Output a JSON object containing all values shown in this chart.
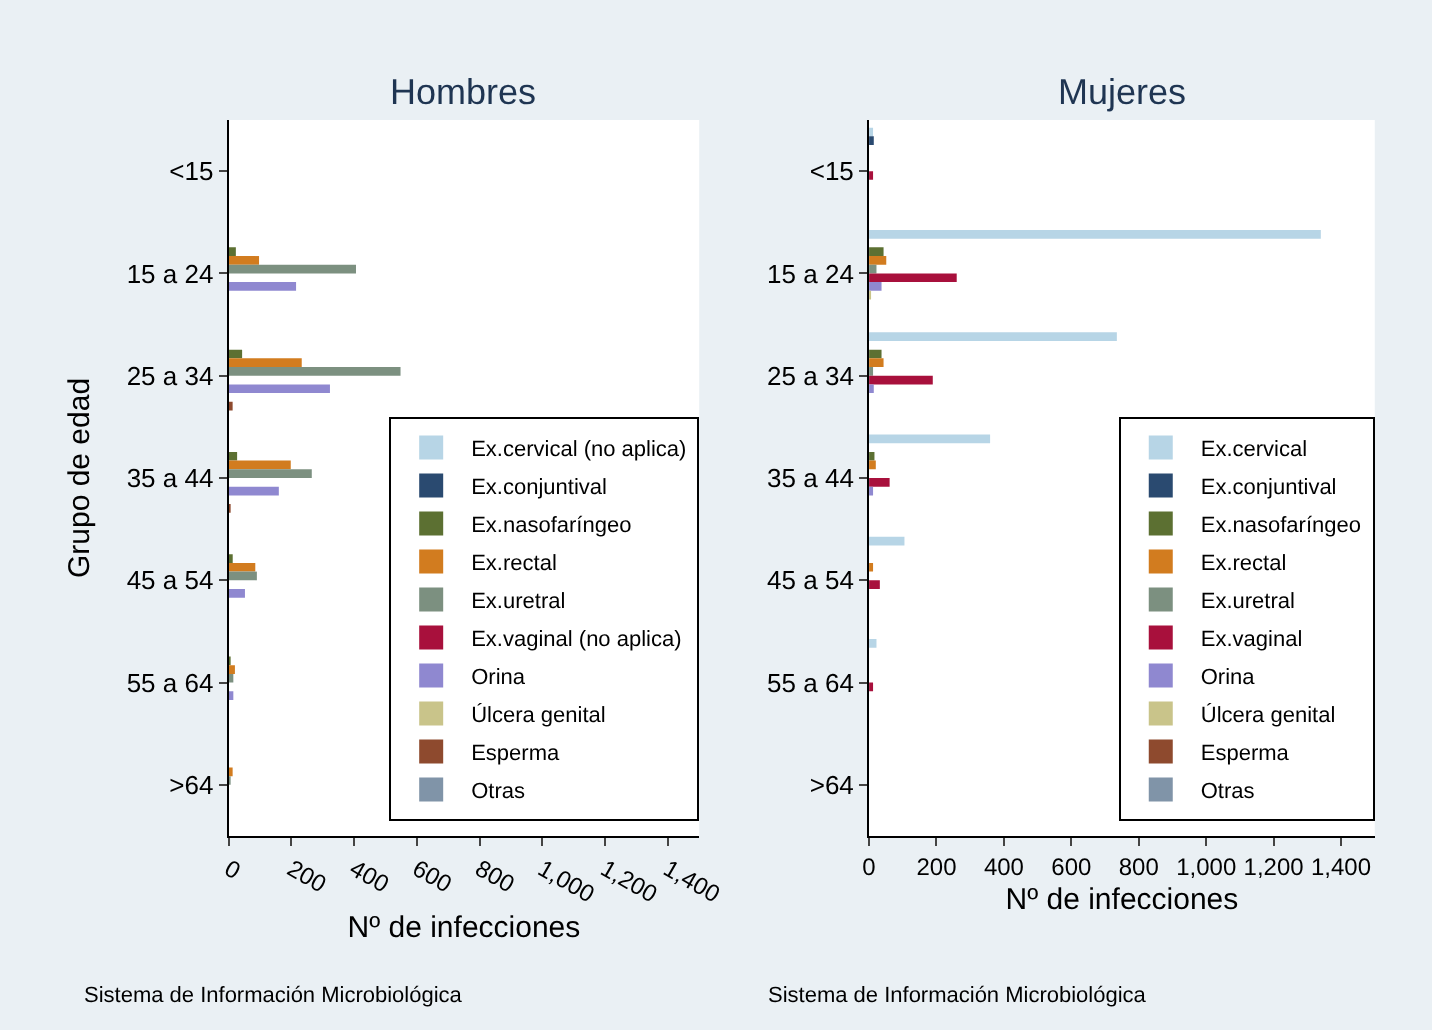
{
  "chart_data": [
    {
      "type": "bar",
      "orientation": "horizontal",
      "title": "Hombres",
      "xlabel": "Nº de infecciones",
      "ylabel": "Grupo de edad",
      "categories": [
        "<15",
        "15 a 24",
        "25 a 34",
        "35 a 44",
        "45 a 54",
        "55 a 64",
        ">64"
      ],
      "xlim": [
        0,
        1500
      ],
      "xticks": [
        0,
        200,
        400,
        600,
        800,
        {
          "value": 1000,
          "label": "1,000"
        },
        {
          "value": 1200,
          "label": "1,200"
        },
        {
          "value": 1400,
          "label": "1,400"
        }
      ],
      "legend": "bottom right",
      "annotations": [
        "Sistema de Información Microbiológica"
      ],
      "series": [
        {
          "name": "Ex.cervical (no aplica)",
          "color": "#b7d5e6",
          "values": [
            null,
            null,
            null,
            null,
            null,
            null,
            null
          ]
        },
        {
          "name": "Ex.conjuntival",
          "color": "#2a4a70",
          "values": [
            null,
            null,
            null,
            null,
            null,
            null,
            null
          ]
        },
        {
          "name": "Ex.nasofaríngeo",
          "color": "#5c7032",
          "values": [
            null,
            23,
            43,
            27,
            13,
            3,
            null
          ]
        },
        {
          "name": "Ex.rectal",
          "color": "#d27c1f",
          "values": [
            null,
            97,
            233,
            198,
            85,
            20,
            10
          ]
        },
        {
          "name": "Ex.uretral",
          "color": "#7c9080",
          "values": [
            null,
            406,
            548,
            265,
            90,
            15,
            5
          ]
        },
        {
          "name": "Ex.vaginal (no aplica)",
          "color": "#a8103c",
          "values": [
            null,
            null,
            null,
            null,
            null,
            null,
            null
          ]
        },
        {
          "name": "Orina",
          "color": "#8f88d0",
          "values": [
            null,
            215,
            323,
            160,
            52,
            15,
            null
          ]
        },
        {
          "name": "Úlcera genital",
          "color": "#c9c48a",
          "values": [
            null,
            null,
            null,
            null,
            null,
            null,
            null
          ]
        },
        {
          "name": "Esperma",
          "color": "#8e4a2e",
          "values": [
            null,
            null,
            8,
            5,
            null,
            null,
            null
          ]
        },
        {
          "name": "Otras",
          "color": "#8094a8",
          "values": [
            null,
            null,
            null,
            null,
            null,
            null,
            null
          ]
        }
      ]
    },
    {
      "type": "bar",
      "orientation": "horizontal",
      "title": "Mujeres",
      "xlabel": "Nº de infecciones",
      "categories": [
        "<15",
        "15 a 24",
        "25 a 34",
        "35 a 44",
        "45 a 54",
        "55 a 64",
        ">64"
      ],
      "xlim": [
        0,
        1500
      ],
      "xticks": [
        0,
        200,
        400,
        600,
        800,
        {
          "value": 1000,
          "label": "1,000"
        },
        {
          "value": 1200,
          "label": "1,200"
        },
        {
          "value": 1400,
          "label": "1,400"
        }
      ],
      "legend": "bottom right",
      "annotations": [
        "Sistema de Información Microbiológica"
      ],
      "series": [
        {
          "name": "Ex.cervical",
          "color": "#b7d5e6",
          "values": [
            8,
            1340,
            735,
            359,
            105,
            22,
            null
          ]
        },
        {
          "name": "Ex.conjuntival",
          "color": "#2a4a70",
          "values": [
            14,
            null,
            null,
            null,
            null,
            null,
            null
          ]
        },
        {
          "name": "Ex.nasofaríngeo",
          "color": "#5c7032",
          "values": [
            null,
            43,
            37,
            16,
            null,
            null,
            null
          ]
        },
        {
          "name": "Ex.rectal",
          "color": "#d27c1f",
          "values": [
            null,
            51,
            43,
            20,
            8,
            null,
            null
          ]
        },
        {
          "name": "Ex.uretral",
          "color": "#7c9080",
          "values": [
            null,
            22,
            6,
            null,
            null,
            null,
            null
          ]
        },
        {
          "name": "Ex.vaginal",
          "color": "#a8103c",
          "values": [
            8,
            260,
            189,
            61,
            32,
            8,
            null
          ]
        },
        {
          "name": "Orina",
          "color": "#8f88d0",
          "values": [
            null,
            37,
            14,
            8,
            null,
            null,
            null
          ]
        },
        {
          "name": "Úlcera genital",
          "color": "#c9c48a",
          "values": [
            null,
            3,
            null,
            null,
            null,
            null,
            null
          ]
        },
        {
          "name": "Esperma",
          "color": "#8e4a2e",
          "values": [
            null,
            null,
            null,
            null,
            null,
            null,
            null
          ]
        },
        {
          "name": "Otras",
          "color": "#8094a8",
          "values": [
            null,
            null,
            null,
            null,
            null,
            null,
            null
          ]
        }
      ]
    }
  ]
}
